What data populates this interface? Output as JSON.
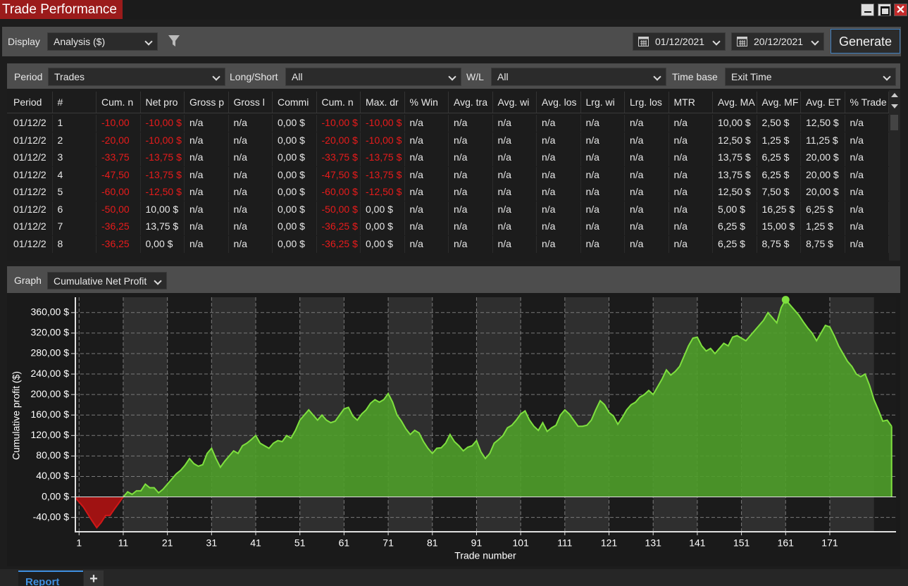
{
  "window": {
    "title": "Trade Performance"
  },
  "toolbar": {
    "display_label": "Display",
    "display_value": "Analysis ($)",
    "date_from": "01/12/2021",
    "date_to": "20/12/2021",
    "generate": "Generate"
  },
  "filters": [
    {
      "label": "Period",
      "value": "Trades"
    },
    {
      "label": "Long/Short",
      "value": "All"
    },
    {
      "label": "W/L",
      "value": "All"
    },
    {
      "label": "Time base",
      "value": "Exit Time"
    }
  ],
  "table": {
    "headers": [
      "Period",
      "#",
      "Cum. n",
      "Net pro",
      "Gross p",
      "Gross l",
      "Commi",
      "Cum. n",
      "Max. dr",
      "% Win",
      "Avg. tra",
      "Avg. wi",
      "Avg. los",
      "Lrg. wi",
      "Lrg. los",
      "MTR",
      "Avg. MA",
      "Avg. MF",
      "Avg. ET",
      "% Trade"
    ],
    "rows": [
      [
        "01/12/2",
        "1",
        "-10,00",
        "-10,00 $",
        "n/a",
        "n/a",
        "0,00 $",
        "-10,00 $",
        "-10,00 $",
        "n/a",
        "n/a",
        "n/a",
        "n/a",
        "n/a",
        "n/a",
        "n/a",
        "10,00 $",
        "2,50 $",
        "12,50 $",
        "n/a"
      ],
      [
        "01/12/2",
        "2",
        "-20,00",
        "-10,00 $",
        "n/a",
        "n/a",
        "0,00 $",
        "-20,00 $",
        "-10,00 $",
        "n/a",
        "n/a",
        "n/a",
        "n/a",
        "n/a",
        "n/a",
        "n/a",
        "12,50 $",
        "1,25 $",
        "11,25 $",
        "n/a"
      ],
      [
        "01/12/2",
        "3",
        "-33,75",
        "-13,75 $",
        "n/a",
        "n/a",
        "0,00 $",
        "-33,75 $",
        "-13,75 $",
        "n/a",
        "n/a",
        "n/a",
        "n/a",
        "n/a",
        "n/a",
        "n/a",
        "13,75 $",
        "6,25 $",
        "20,00 $",
        "n/a"
      ],
      [
        "01/12/2",
        "4",
        "-47,50",
        "-13,75 $",
        "n/a",
        "n/a",
        "0,00 $",
        "-47,50 $",
        "-13,75 $",
        "n/a",
        "n/a",
        "n/a",
        "n/a",
        "n/a",
        "n/a",
        "n/a",
        "13,75 $",
        "6,25 $",
        "20,00 $",
        "n/a"
      ],
      [
        "01/12/2",
        "5",
        "-60,00",
        "-12,50 $",
        "n/a",
        "n/a",
        "0,00 $",
        "-60,00 $",
        "-12,50 $",
        "n/a",
        "n/a",
        "n/a",
        "n/a",
        "n/a",
        "n/a",
        "n/a",
        "12,50 $",
        "7,50 $",
        "20,00 $",
        "n/a"
      ],
      [
        "01/12/2",
        "6",
        "-50,00",
        "10,00 $",
        "n/a",
        "n/a",
        "0,00 $",
        "-50,00 $",
        "0,00 $",
        "n/a",
        "n/a",
        "n/a",
        "n/a",
        "n/a",
        "n/a",
        "n/a",
        "5,00 $",
        "16,25 $",
        "6,25 $",
        "n/a"
      ],
      [
        "01/12/2",
        "7",
        "-36,25",
        "13,75 $",
        "n/a",
        "n/a",
        "0,00 $",
        "-36,25 $",
        "0,00 $",
        "n/a",
        "n/a",
        "n/a",
        "n/a",
        "n/a",
        "n/a",
        "n/a",
        "6,25 $",
        "15,00 $",
        "1,25 $",
        "n/a"
      ],
      [
        "01/12/2",
        "8",
        "-36,25",
        "0,00 $",
        "n/a",
        "n/a",
        "0,00 $",
        "-36,25 $",
        "0,00 $",
        "n/a",
        "n/a",
        "n/a",
        "n/a",
        "n/a",
        "n/a",
        "n/a",
        "6,25 $",
        "8,75 $",
        "8,75 $",
        "n/a"
      ]
    ]
  },
  "graph": {
    "label": "Graph",
    "value": "Cumulative Net Profit"
  },
  "chart_data": {
    "type": "area",
    "y_label": "Cumulative profit ($)",
    "x_label": "Trade number",
    "x": [
      0,
      1,
      2,
      3,
      4,
      5,
      6,
      7,
      8,
      9,
      10,
      11,
      12,
      13,
      14,
      15,
      16,
      17,
      18,
      19,
      20,
      21,
      22,
      23,
      24,
      25,
      26,
      27,
      28,
      29,
      30,
      31,
      32,
      33,
      34,
      35,
      36,
      37,
      38,
      39,
      40,
      41,
      42,
      43,
      44,
      45,
      46,
      47,
      48,
      49,
      50,
      51,
      52,
      53,
      54,
      55,
      56,
      57,
      58,
      59,
      60,
      61,
      62,
      63,
      64,
      65,
      66,
      67,
      68,
      69,
      70,
      71,
      72,
      73,
      74,
      75,
      76,
      77,
      78,
      79,
      80,
      81,
      82,
      83,
      84,
      85,
      86,
      87,
      88,
      89,
      90,
      91,
      92,
      93,
      94,
      95,
      96,
      97,
      98,
      99,
      100,
      101,
      102,
      103,
      104,
      105,
      106,
      107,
      108,
      109,
      110,
      111,
      112,
      113,
      114,
      115,
      116,
      117,
      118,
      119,
      120,
      121,
      122,
      123,
      124,
      125,
      126,
      127,
      128,
      129,
      130,
      131,
      132,
      133,
      134,
      135,
      136,
      137,
      138,
      139,
      140,
      141,
      142,
      143,
      144,
      145,
      146,
      147,
      148,
      149,
      150,
      151,
      152,
      153,
      154,
      155,
      156,
      157,
      158,
      159,
      160,
      161,
      162,
      163,
      164,
      165,
      166,
      167,
      168,
      169,
      170,
      171,
      172,
      173,
      174,
      175,
      176,
      177,
      178,
      179,
      180,
      181,
      182,
      183,
      184,
      185
    ],
    "values": [
      0,
      -10,
      -20,
      -33.75,
      -47.5,
      -60,
      -50,
      -36.25,
      -36.25,
      -23.75,
      -12,
      0,
      10,
      5,
      12,
      12,
      25,
      18,
      18,
      8,
      15,
      25,
      35,
      45,
      52,
      62,
      75,
      65,
      60,
      63,
      85,
      95,
      75,
      58,
      70,
      80,
      90,
      85,
      100,
      105,
      112,
      120,
      105,
      100,
      95,
      105,
      110,
      108,
      120,
      115,
      130,
      150,
      160,
      170,
      160,
      150,
      160,
      150,
      145,
      148,
      160,
      172,
      175,
      158,
      150,
      162,
      170,
      183,
      190,
      185,
      190,
      202,
      185,
      160,
      148,
      133,
      122,
      130,
      125,
      108,
      95,
      85,
      95,
      96,
      105,
      122,
      108,
      100,
      90,
      97,
      100,
      110,
      88,
      75,
      85,
      105,
      112,
      120,
      135,
      140,
      150,
      162,
      168,
      150,
      138,
      130,
      145,
      128,
      135,
      140,
      160,
      170,
      162,
      150,
      138,
      138,
      140,
      150,
      170,
      188,
      180,
      165,
      158,
      142,
      155,
      170,
      180,
      185,
      195,
      200,
      208,
      200,
      215,
      230,
      248,
      238,
      245,
      255,
      275,
      295,
      310,
      312,
      295,
      285,
      290,
      280,
      290,
      300,
      295,
      312,
      315,
      310,
      305,
      315,
      325,
      335,
      345,
      360,
      350,
      340,
      370,
      385,
      375,
      365,
      355,
      342,
      330,
      320,
      305,
      320,
      335,
      332,
      315,
      295,
      280,
      265,
      255,
      240,
      235,
      240,
      218,
      190,
      170,
      148,
      150,
      138
    ],
    "xlim": [
      0,
      186
    ],
    "ylim": [
      -68,
      390
    ],
    "xticks": [
      1,
      11,
      21,
      31,
      41,
      51,
      61,
      71,
      81,
      91,
      101,
      111,
      121,
      131,
      141,
      151,
      161,
      171
    ],
    "yticks": [
      {
        "value": -40,
        "label": "-40,00 $"
      },
      {
        "value": 0,
        "label": "0,00 $"
      },
      {
        "value": 40,
        "label": "40,00 $"
      },
      {
        "value": 80,
        "label": "80,00 $"
      },
      {
        "value": 120,
        "label": "120,00 $"
      },
      {
        "value": 160,
        "label": "160,00 $"
      },
      {
        "value": 200,
        "label": "200,00 $"
      },
      {
        "value": 240,
        "label": "240,00 $"
      },
      {
        "value": 280,
        "label": "280,00 $"
      },
      {
        "value": 320,
        "label": "320,00 $"
      },
      {
        "value": 360,
        "label": "360,00 $"
      }
    ],
    "grid": true,
    "color": "#4f9e2a",
    "line_color": "#7fe03f",
    "negative_color": "#a01212"
  },
  "tabs": [
    "Report",
    "+"
  ]
}
